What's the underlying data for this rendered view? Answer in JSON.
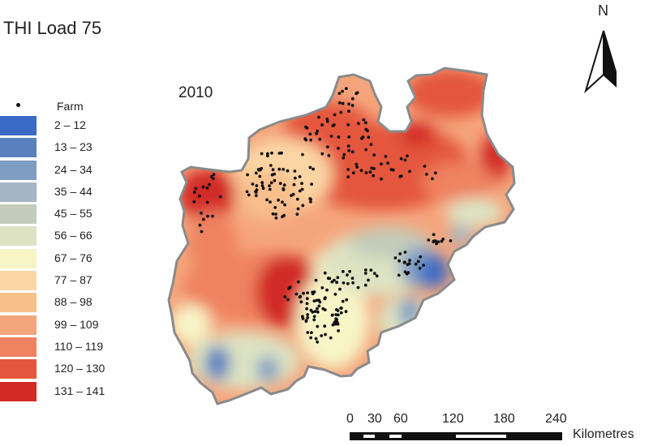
{
  "title": "THI Load 75",
  "year": "2010",
  "legend": {
    "farm_label": "Farm",
    "classes": [
      {
        "label": "2 – 12",
        "color": "#3a6bc4"
      },
      {
        "label": "13 – 23",
        "color": "#5a80c0"
      },
      {
        "label": "24 – 34",
        "color": "#7e9cc4"
      },
      {
        "label": "35 – 44",
        "color": "#a3b5c6"
      },
      {
        "label": "45 – 55",
        "color": "#c2ccba"
      },
      {
        "label": "56 – 66",
        "color": "#dde3c2"
      },
      {
        "label": "67 – 76",
        "color": "#f7f4c6"
      },
      {
        "label": "77 – 87",
        "color": "#fbd6a4"
      },
      {
        "label": "88 – 98",
        "color": "#f8bf8d"
      },
      {
        "label": "99 – 109",
        "color": "#f5a57c"
      },
      {
        "label": "110 – 119",
        "color": "#ef8260"
      },
      {
        "label": "120 – 130",
        "color": "#e4573e"
      },
      {
        "label": "131 – 141",
        "color": "#d22b26"
      }
    ]
  },
  "north_label": "N",
  "scale": {
    "ticks": [
      "0",
      "30",
      "60",
      "120",
      "180",
      "240"
    ],
    "unit": "Kilometres"
  }
}
